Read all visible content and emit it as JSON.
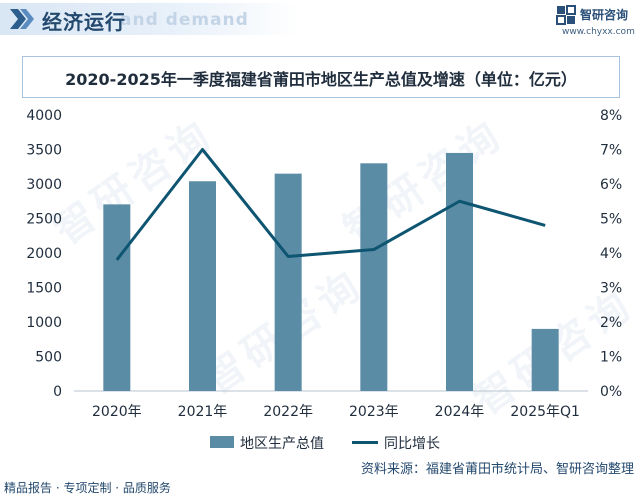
{
  "header": {
    "title": "经济运行",
    "ghost_text": "and demand"
  },
  "logo": {
    "name": "智研咨询",
    "url": "www.chyxx.com"
  },
  "watermark_text": "智研咨询",
  "chart_data": {
    "type": "bar+line",
    "title": "2020-2025年一季度福建省莆田市地区生产总值及增速（单位：亿元）",
    "categories": [
      "2020年",
      "2021年",
      "2022年",
      "2023年",
      "2024年",
      "2025年Q1"
    ],
    "series": [
      {
        "name": "地区生产总值",
        "type": "bar",
        "axis": "left",
        "values": [
          2705,
          3040,
          3150,
          3300,
          3450,
          900
        ]
      },
      {
        "name": "同比增长",
        "type": "line",
        "axis": "right",
        "values": [
          3.8,
          7.0,
          3.9,
          4.1,
          5.5,
          4.8
        ]
      }
    ],
    "y_left": {
      "min": 0,
      "max": 4000,
      "ticks": [
        "0",
        "500",
        "1000",
        "1500",
        "2000",
        "2500",
        "3000",
        "3500",
        "4000"
      ]
    },
    "y_right": {
      "min": 0,
      "max": 8,
      "ticks": [
        "0%",
        "1%",
        "2%",
        "3%",
        "4%",
        "5%",
        "6%",
        "7%",
        "8%"
      ]
    },
    "grid": false,
    "legend_position": "bottom",
    "colors": {
      "bar": "#5b8ca6",
      "line": "#0e5572"
    }
  },
  "source": "资料来源：福建省莆田市统计局、智研咨询整理",
  "footer": "精品报告 · 专项定制 · 品质服务"
}
